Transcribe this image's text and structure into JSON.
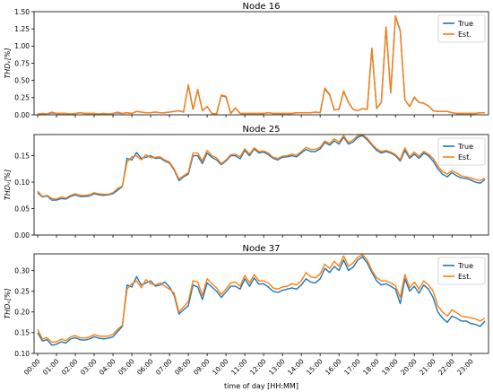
{
  "chart_data": [
    {
      "type": "line",
      "title": "Node 16",
      "ylabel": "THDᵥ[%]",
      "ylim": [
        0,
        1.5
      ],
      "yticks": [
        "0.00",
        "0.25",
        "0.50",
        "0.75",
        "1.00",
        "1.25",
        "1.50"
      ],
      "yticks_values": [
        0,
        0.25,
        0.5,
        0.75,
        1.0,
        1.25,
        1.5
      ],
      "legend": {
        "placement": "top-right",
        "entries": [
          "True",
          "Est."
        ]
      },
      "series": [
        {
          "name": "True",
          "color": "#1f77b4",
          "values": [
            0.01,
            0.02,
            0.01,
            0.03,
            0.02,
            0.02,
            0.02,
            0.01,
            0.02,
            0.03,
            0.02,
            0.02,
            0.02,
            0.01,
            0.02,
            0.01,
            0.02,
            0.03,
            0.02,
            0.03,
            0.02,
            0.05,
            0.04,
            0.03,
            0.03,
            0.04,
            0.03,
            0.03,
            0.04,
            0.05,
            0.06,
            0.04,
            0.43,
            0.08,
            0.36,
            0.06,
            0.12,
            0.02,
            0.01,
            0.28,
            0.26,
            0.02,
            0.1,
            0.02,
            0.02,
            0.02,
            0.02,
            0.02,
            0.02,
            0.03,
            0.02,
            0.02,
            0.02,
            0.02,
            0.02,
            0.03,
            0.03,
            0.03,
            0.03,
            0.04,
            0.03,
            0.38,
            0.29,
            0.07,
            0.08,
            0.34,
            0.18,
            0.08,
            0.06,
            0.09,
            0.08,
            0.96,
            0.09,
            0.18,
            1.27,
            0.32,
            1.43,
            1.22,
            0.22,
            0.12,
            0.25,
            0.18,
            0.17,
            0.13,
            0.06,
            0.05,
            0.05,
            0.05,
            0.03,
            0.02,
            0.02,
            0.02,
            0.02,
            0.02,
            0.03,
            0.03
          ]
        },
        {
          "name": "Est.",
          "color": "#ff7f0e",
          "values": [
            0.01,
            0.02,
            0.01,
            0.04,
            0.02,
            0.02,
            0.02,
            0.01,
            0.02,
            0.03,
            0.02,
            0.02,
            0.02,
            0.01,
            0.02,
            0.01,
            0.02,
            0.04,
            0.02,
            0.03,
            0.02,
            0.05,
            0.04,
            0.03,
            0.03,
            0.04,
            0.03,
            0.03,
            0.04,
            0.05,
            0.06,
            0.04,
            0.44,
            0.08,
            0.37,
            0.06,
            0.12,
            0.02,
            0.01,
            0.29,
            0.27,
            0.02,
            0.1,
            0.02,
            0.02,
            0.02,
            0.02,
            0.02,
            0.02,
            0.03,
            0.02,
            0.02,
            0.02,
            0.02,
            0.02,
            0.03,
            0.03,
            0.03,
            0.03,
            0.04,
            0.03,
            0.39,
            0.3,
            0.07,
            0.08,
            0.35,
            0.18,
            0.08,
            0.06,
            0.09,
            0.08,
            0.97,
            0.09,
            0.18,
            1.28,
            0.33,
            1.44,
            1.23,
            0.22,
            0.12,
            0.26,
            0.18,
            0.17,
            0.13,
            0.06,
            0.05,
            0.05,
            0.05,
            0.03,
            0.02,
            0.02,
            0.02,
            0.02,
            0.02,
            0.03,
            0.03
          ]
        }
      ]
    },
    {
      "type": "line",
      "title": "Node 25",
      "ylabel": "THDᵥ[%]",
      "ylim": [
        0,
        0.19
      ],
      "yticks": [
        "0.00",
        "0.05",
        "0.10",
        "0.15"
      ],
      "yticks_values": [
        0,
        0.05,
        0.1,
        0.15
      ],
      "legend": {
        "placement": "top-right",
        "entries": [
          "True",
          "Est."
        ]
      },
      "series": [
        {
          "name": "True",
          "color": "#1f77b4",
          "values": [
            0.08,
            0.072,
            0.074,
            0.066,
            0.066,
            0.069,
            0.068,
            0.073,
            0.076,
            0.073,
            0.073,
            0.074,
            0.078,
            0.076,
            0.075,
            0.076,
            0.078,
            0.085,
            0.092,
            0.145,
            0.142,
            0.156,
            0.145,
            0.147,
            0.15,
            0.145,
            0.146,
            0.14,
            0.136,
            0.123,
            0.103,
            0.11,
            0.115,
            0.15,
            0.15,
            0.135,
            0.155,
            0.147,
            0.142,
            0.133,
            0.14,
            0.15,
            0.15,
            0.144,
            0.16,
            0.15,
            0.163,
            0.155,
            0.157,
            0.152,
            0.145,
            0.142,
            0.147,
            0.148,
            0.15,
            0.148,
            0.155,
            0.162,
            0.158,
            0.158,
            0.163,
            0.175,
            0.17,
            0.178,
            0.172,
            0.185,
            0.172,
            0.176,
            0.185,
            0.188,
            0.18,
            0.17,
            0.16,
            0.155,
            0.158,
            0.155,
            0.15,
            0.14,
            0.16,
            0.145,
            0.153,
            0.145,
            0.155,
            0.15,
            0.14,
            0.125,
            0.115,
            0.11,
            0.118,
            0.112,
            0.108,
            0.107,
            0.104,
            0.1,
            0.098,
            0.105
          ]
        },
        {
          "name": "Est.",
          "color": "#ff7f0e",
          "values": [
            0.083,
            0.073,
            0.075,
            0.069,
            0.068,
            0.072,
            0.07,
            0.075,
            0.078,
            0.075,
            0.075,
            0.076,
            0.08,
            0.078,
            0.077,
            0.077,
            0.08,
            0.088,
            0.093,
            0.138,
            0.148,
            0.15,
            0.142,
            0.152,
            0.146,
            0.147,
            0.148,
            0.142,
            0.138,
            0.125,
            0.106,
            0.112,
            0.118,
            0.155,
            0.155,
            0.14,
            0.16,
            0.15,
            0.146,
            0.135,
            0.142,
            0.152,
            0.153,
            0.148,
            0.163,
            0.153,
            0.165,
            0.158,
            0.159,
            0.155,
            0.147,
            0.145,
            0.149,
            0.15,
            0.153,
            0.151,
            0.158,
            0.166,
            0.162,
            0.162,
            0.166,
            0.178,
            0.173,
            0.182,
            0.176,
            0.188,
            0.175,
            0.18,
            0.188,
            0.19,
            0.183,
            0.172,
            0.163,
            0.158,
            0.16,
            0.157,
            0.152,
            0.143,
            0.165,
            0.148,
            0.157,
            0.149,
            0.158,
            0.153,
            0.145,
            0.13,
            0.12,
            0.115,
            0.122,
            0.117,
            0.112,
            0.11,
            0.108,
            0.105,
            0.103,
            0.108
          ]
        }
      ]
    },
    {
      "type": "line",
      "title": "Node 37",
      "ylabel": "THDᵥ[%]",
      "ylim": [
        0.1,
        0.34
      ],
      "yticks": [
        "0.10",
        "0.15",
        "0.20",
        "0.25",
        "0.30"
      ],
      "yticks_values": [
        0.1,
        0.15,
        0.2,
        0.25,
        0.3
      ],
      "xlabel": "time of day [HH:MM]",
      "xticks": [
        "00:00",
        "01:00",
        "02:00",
        "03:00",
        "04:00",
        "05:00",
        "06:00",
        "07:00",
        "08:00",
        "09:00",
        "10:00",
        "11:00",
        "12:00",
        "13:00",
        "14:00",
        "15:00",
        "16:00",
        "17:00",
        "18:00",
        "19:00",
        "20:00",
        "21:00",
        "22:00",
        "23:00"
      ],
      "legend": {
        "placement": "top-right",
        "entries": [
          "True",
          "Est."
        ]
      },
      "series": [
        {
          "name": "True",
          "color": "#1f77b4",
          "values": [
            0.15,
            0.13,
            0.133,
            0.12,
            0.122,
            0.128,
            0.125,
            0.135,
            0.138,
            0.133,
            0.132,
            0.135,
            0.14,
            0.137,
            0.135,
            0.137,
            0.14,
            0.153,
            0.165,
            0.265,
            0.26,
            0.285,
            0.265,
            0.27,
            0.275,
            0.262,
            0.265,
            0.272,
            0.26,
            0.24,
            0.195,
            0.205,
            0.215,
            0.265,
            0.26,
            0.23,
            0.27,
            0.26,
            0.25,
            0.235,
            0.248,
            0.262,
            0.262,
            0.255,
            0.28,
            0.262,
            0.282,
            0.267,
            0.268,
            0.26,
            0.25,
            0.247,
            0.252,
            0.255,
            0.258,
            0.255,
            0.265,
            0.28,
            0.272,
            0.27,
            0.28,
            0.305,
            0.295,
            0.31,
            0.3,
            0.325,
            0.3,
            0.308,
            0.325,
            0.333,
            0.318,
            0.295,
            0.275,
            0.265,
            0.268,
            0.262,
            0.255,
            0.22,
            0.28,
            0.25,
            0.262,
            0.245,
            0.265,
            0.255,
            0.235,
            0.2,
            0.185,
            0.175,
            0.19,
            0.185,
            0.178,
            0.178,
            0.172,
            0.17,
            0.165,
            0.178
          ]
        },
        {
          "name": "Est.",
          "color": "#ff7f0e",
          "values": [
            0.158,
            0.135,
            0.138,
            0.127,
            0.128,
            0.134,
            0.131,
            0.14,
            0.143,
            0.138,
            0.137,
            0.14,
            0.145,
            0.142,
            0.141,
            0.142,
            0.146,
            0.158,
            0.168,
            0.255,
            0.268,
            0.275,
            0.258,
            0.278,
            0.268,
            0.265,
            0.27,
            0.262,
            0.255,
            0.245,
            0.2,
            0.212,
            0.225,
            0.275,
            0.272,
            0.24,
            0.28,
            0.268,
            0.258,
            0.242,
            0.255,
            0.27,
            0.272,
            0.262,
            0.288,
            0.27,
            0.29,
            0.275,
            0.275,
            0.27,
            0.258,
            0.255,
            0.26,
            0.262,
            0.268,
            0.265,
            0.275,
            0.295,
            0.285,
            0.282,
            0.292,
            0.315,
            0.305,
            0.322,
            0.31,
            0.335,
            0.31,
            0.318,
            0.332,
            0.338,
            0.325,
            0.3,
            0.283,
            0.275,
            0.275,
            0.27,
            0.263,
            0.235,
            0.29,
            0.258,
            0.272,
            0.255,
            0.275,
            0.265,
            0.25,
            0.215,
            0.2,
            0.19,
            0.205,
            0.198,
            0.19,
            0.188,
            0.186,
            0.183,
            0.178,
            0.185
          ]
        }
      ]
    }
  ]
}
